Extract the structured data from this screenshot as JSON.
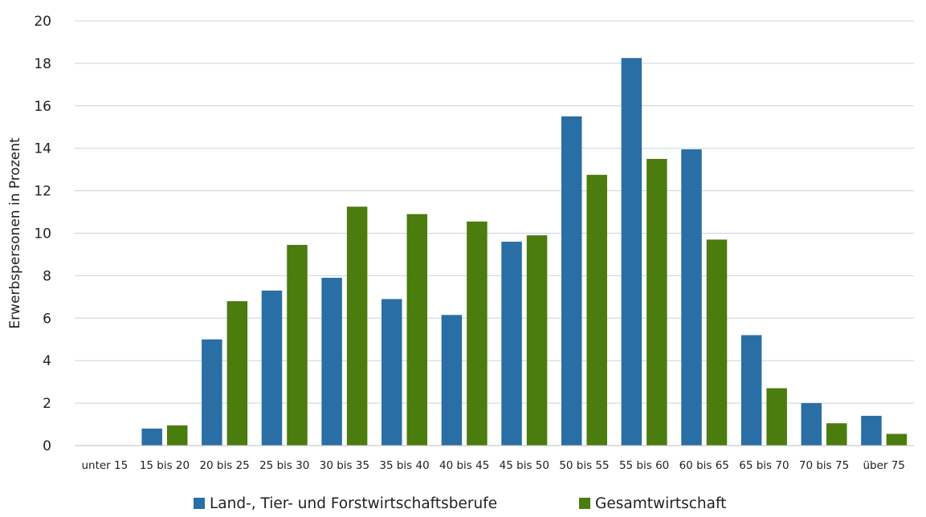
{
  "chart_data": {
    "type": "bar",
    "title": "",
    "xlabel": "",
    "ylabel": "Erwerbspersonen in Prozent",
    "ylim": [
      0,
      20
    ],
    "yticks": [
      0,
      2,
      4,
      6,
      8,
      10,
      12,
      14,
      16,
      18,
      20
    ],
    "grid": true,
    "legend_position": "bottom",
    "categories": [
      "unter 15",
      "15 bis 20",
      "20 bis 25",
      "25 bis 30",
      "30 bis 35",
      "35 bis 40",
      "40 bis 45",
      "45 bis 50",
      "50 bis 55",
      "55 bis 60",
      "60 bis 65",
      "65 bis 70",
      "70 bis 75",
      "über 75"
    ],
    "series": [
      {
        "name": "Land-, Tier- und Forstwirtschaftsberufe",
        "color": "#2A6EA6",
        "values": [
          0,
          0.8,
          5.0,
          7.3,
          7.9,
          6.9,
          6.15,
          9.6,
          15.5,
          18.25,
          13.95,
          5.2,
          2.0,
          1.4
        ]
      },
      {
        "name": "Gesamtwirtschaft",
        "color": "#4A7C0E",
        "values": [
          0,
          0.95,
          6.8,
          9.45,
          11.25,
          10.9,
          10.55,
          9.9,
          12.75,
          13.5,
          9.7,
          2.7,
          1.05,
          0.55
        ]
      }
    ]
  }
}
